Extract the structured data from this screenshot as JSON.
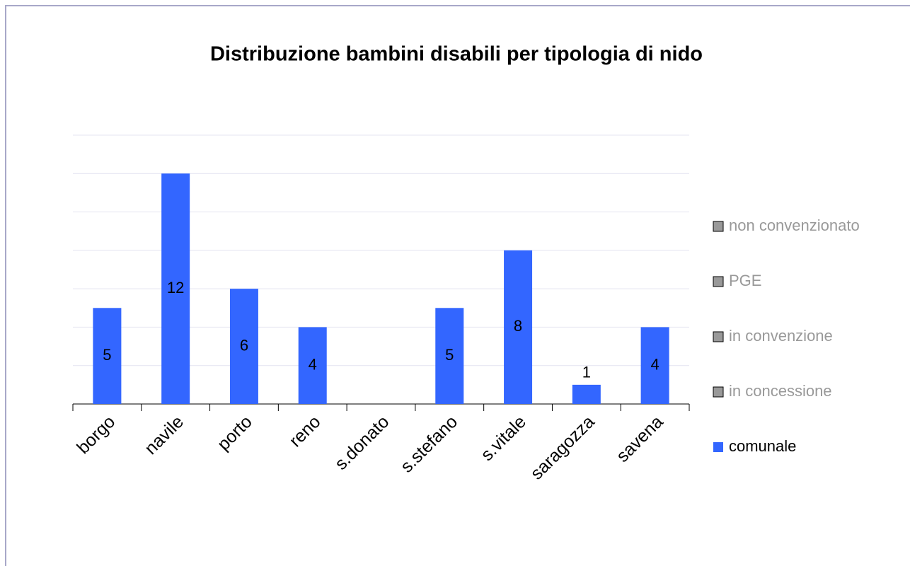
{
  "chart_data": {
    "type": "bar",
    "stacked": true,
    "title": "Distribuzione bambini disabili per tipologia di nido",
    "categories": [
      "borgo",
      "navile",
      "porto",
      "reno",
      "s.donato",
      "s.stefano",
      "s.vitale",
      "saragozza",
      "savena"
    ],
    "series": [
      {
        "name": "comunale",
        "color": "#3366ff",
        "values": [
          5,
          12,
          6,
          4,
          null,
          5,
          8,
          1,
          4
        ]
      },
      {
        "name": "in concessione",
        "color": "#999999",
        "values": [
          null,
          null,
          null,
          null,
          null,
          null,
          null,
          null,
          null
        ]
      },
      {
        "name": "in convenzione",
        "color": "#999999",
        "values": [
          null,
          null,
          null,
          null,
          null,
          null,
          null,
          null,
          null
        ]
      },
      {
        "name": "PGE",
        "color": "#999999",
        "values": [
          null,
          null,
          null,
          null,
          null,
          null,
          null,
          null,
          null
        ]
      },
      {
        "name": "non convenzionato",
        "color": "#999999",
        "values": [
          null,
          null,
          null,
          null,
          null,
          null,
          null,
          null,
          null
        ]
      }
    ],
    "ylim": [
      0,
      14
    ],
    "yticks": [
      0,
      2,
      4,
      6,
      8,
      10,
      12,
      14
    ],
    "grid": true,
    "legend": "right"
  }
}
